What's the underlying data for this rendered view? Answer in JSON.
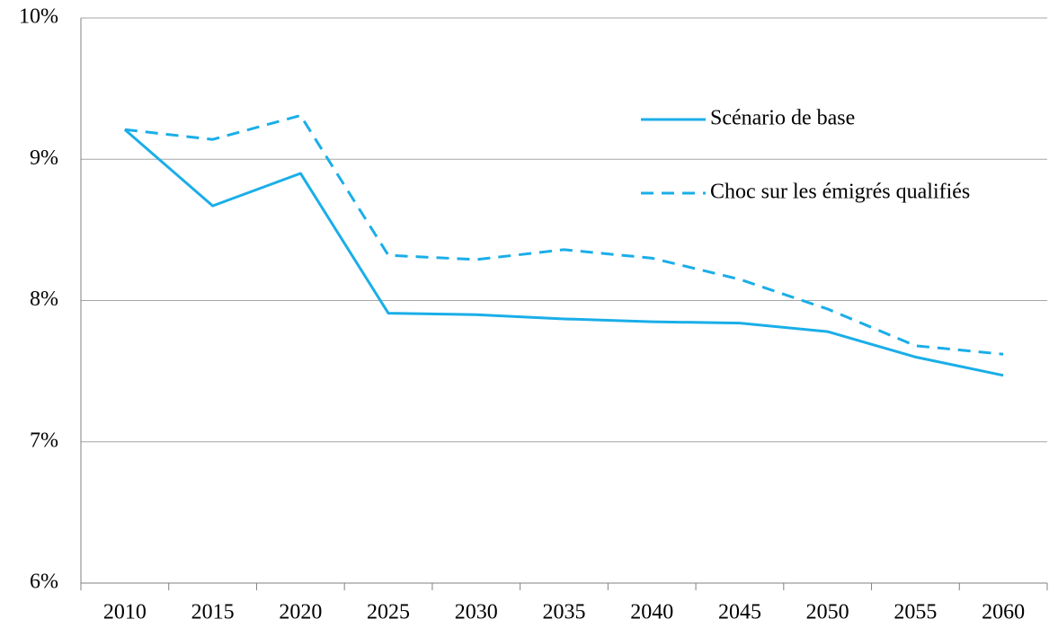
{
  "chart_data": {
    "type": "line",
    "categories": [
      "2010",
      "2015",
      "2020",
      "2025",
      "2030",
      "2035",
      "2040",
      "2045",
      "2050",
      "2055",
      "2060"
    ],
    "series": [
      {
        "name": "Scénario de base",
        "color": "#1aaee8",
        "dash": false,
        "values": [
          9.21,
          8.67,
          8.9,
          7.91,
          7.9,
          7.87,
          7.85,
          7.84,
          7.78,
          7.6,
          7.47
        ]
      },
      {
        "name": "Choc sur les émigrés qualifiés",
        "color": "#1aaee8",
        "dash": true,
        "values": [
          9.21,
          9.14,
          9.31,
          8.32,
          8.29,
          8.36,
          8.3,
          8.15,
          7.94,
          7.68,
          7.62
        ]
      }
    ],
    "ylim": [
      6,
      10
    ],
    "yticks": [
      {
        "value": 6,
        "label": "6%"
      },
      {
        "value": 7,
        "label": "7%"
      },
      {
        "value": 8,
        "label": "8%"
      },
      {
        "value": 9,
        "label": "9%"
      },
      {
        "value": 10,
        "label": "10%"
      }
    ],
    "grid": true,
    "legend": "upper right"
  }
}
